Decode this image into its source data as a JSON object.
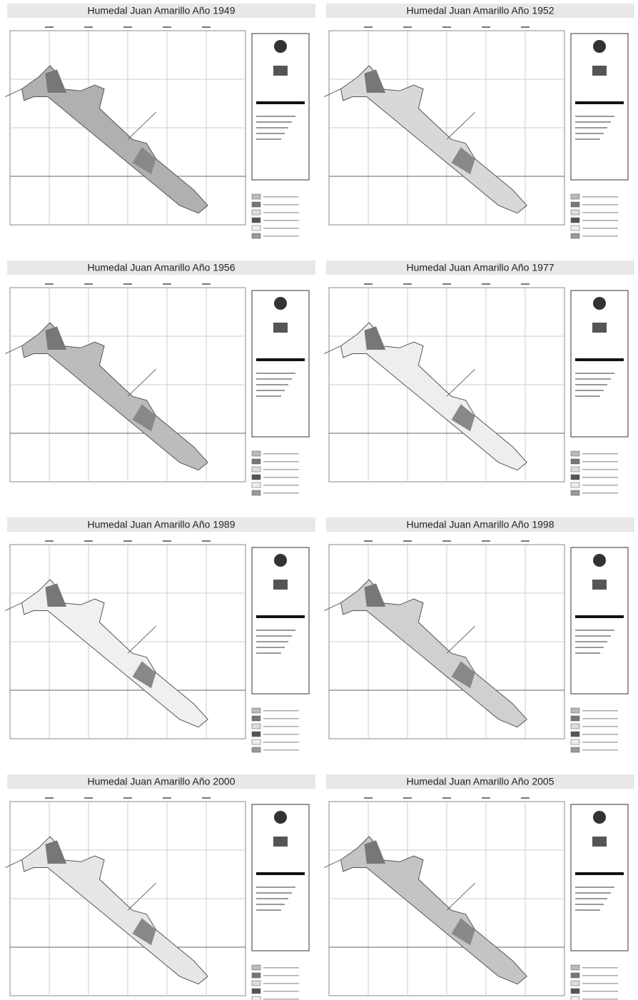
{
  "maps": [
    {
      "title": "Humedal Juan Amarillo Año 1949"
    },
    {
      "title": "Humedal Juan Amarillo Año 1952"
    },
    {
      "title": "Humedal Juan Amarillo Año 1956"
    },
    {
      "title": "Humedal Juan Amarillo Año 1977"
    },
    {
      "title": "Humedal Juan Amarillo Año 1989"
    },
    {
      "title": "Humedal Juan Amarillo Año 1998"
    },
    {
      "title": "Humedal Juan Amarillo Año 2000"
    },
    {
      "title": "Humedal Juan Amarillo Año 2005"
    }
  ]
}
